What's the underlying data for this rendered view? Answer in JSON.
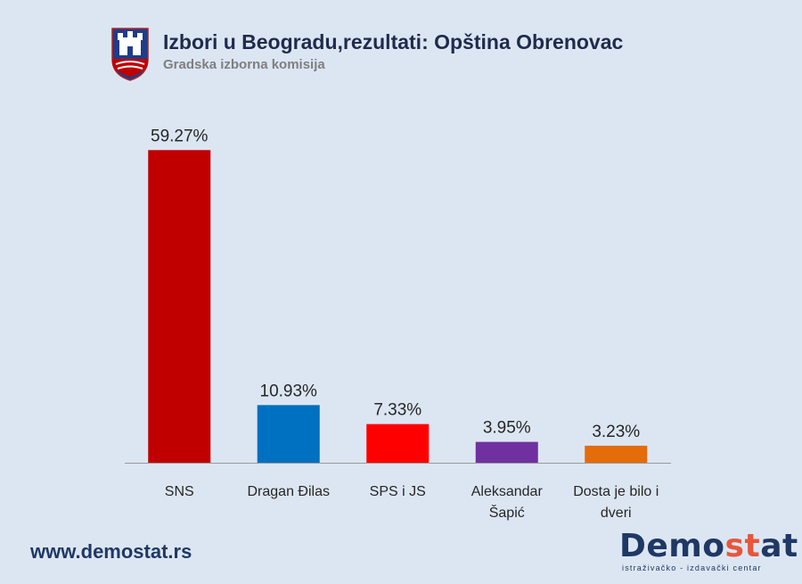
{
  "header": {
    "title": "Izbori u Beogradu,rezultati: Opština Obrenovac",
    "subtitle": "Gradska izborna komisija"
  },
  "footer": {
    "website": "www.demostat.rs",
    "logo_part1": "Demo",
    "logo_part2": "st",
    "logo_part3": "at",
    "logo_tagline": "istraživačko - izdavački centar"
  },
  "colors": {
    "background": "#dce6f3",
    "title": "#1f2b4d",
    "subtitle": "#7f7f7f",
    "brand_navy": "#1f3864",
    "brand_orange": "#e8563a"
  },
  "chart_data": {
    "type": "bar",
    "categories": [
      [
        "SNS"
      ],
      [
        "Dragan Đilas"
      ],
      [
        "SPS i JS"
      ],
      [
        "Aleksandar",
        "Šapić"
      ],
      [
        "Dosta je bilo i",
        "dveri"
      ]
    ],
    "values": [
      59.27,
      10.93,
      7.33,
      3.95,
      3.23
    ],
    "value_labels": [
      "59.27%",
      "10.93%",
      "7.33%",
      "3.95%",
      "3.23%"
    ],
    "colors": [
      "#c00000",
      "#0070c0",
      "#ff0000",
      "#7030a0",
      "#e46c0a"
    ],
    "ylim": [
      0,
      60
    ],
    "grid": false,
    "legend": "none",
    "xlabel": "",
    "ylabel": ""
  }
}
